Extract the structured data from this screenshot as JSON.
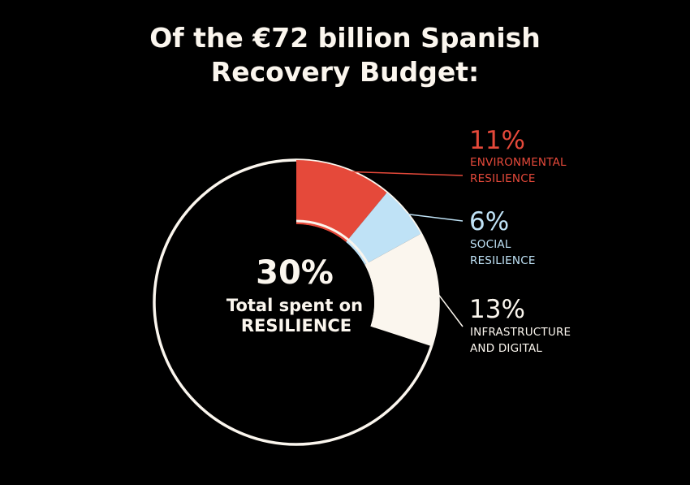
{
  "title_line1": "Of the €72 billion Spanish",
  "title_line2": "Recovery Budget:",
  "chart_data": {
    "type": "pie",
    "title": "Of the €72 billion Spanish Recovery Budget:",
    "center_value": "30%",
    "center_label_line1": "Total spent on",
    "center_label_line2": "RESILIENCE",
    "slices": [
      {
        "pct_label": "11%",
        "value": 11,
        "label_line1": "ENVIRONMENTAL",
        "label_line2": "RESILIENCE",
        "color": "#e5493a"
      },
      {
        "pct_label": "6%",
        "value": 6,
        "label_line1": "SOCIAL",
        "label_line2": "RESILIENCE",
        "color": "#bfe2f6"
      },
      {
        "pct_label": "13%",
        "value": 13,
        "label_line1": "INFRASTRUCTURE",
        "label_line2": "AND DIGITAL",
        "color": "#fbf6ee"
      }
    ],
    "remainder_value": 70,
    "outline_color": "#fbf6ee",
    "background_color": "#000000"
  }
}
